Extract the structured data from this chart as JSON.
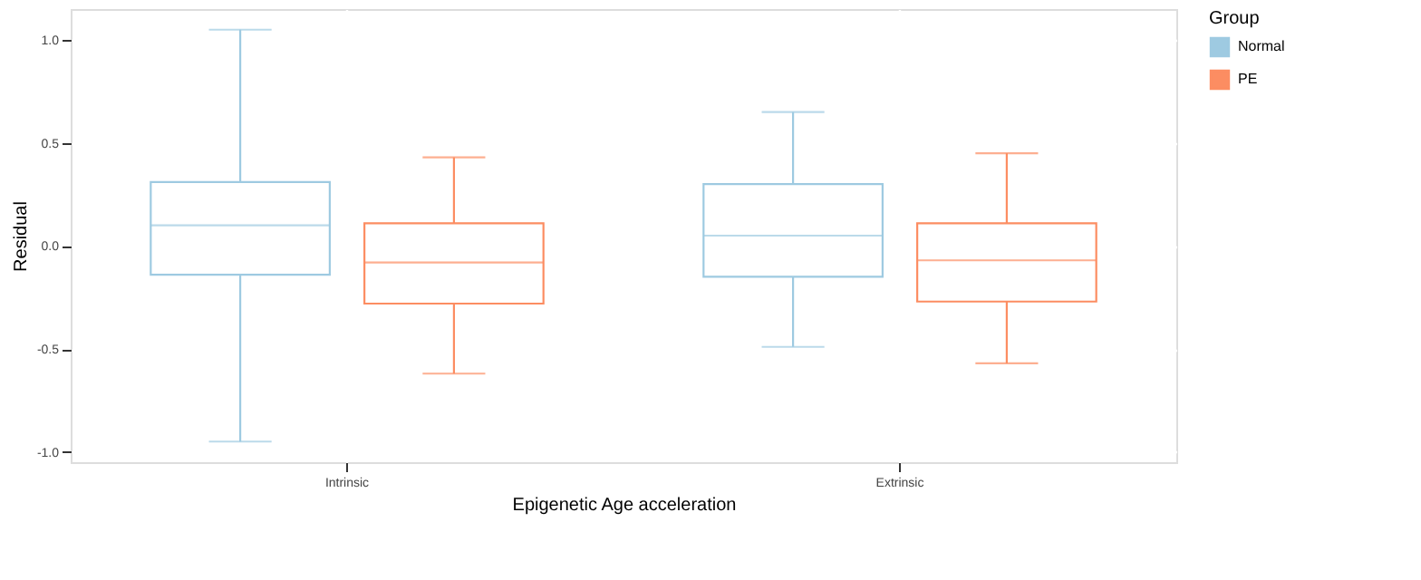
{
  "chart_data": {
    "type": "box",
    "xlabel": "Epigenetic Age acceleration",
    "ylabel": "Residual",
    "legend_title": "Group",
    "categories": [
      "Intrinsic",
      "Extrinsic"
    ],
    "series": [
      {
        "name": "Normal",
        "color": "#9ecae1",
        "boxes": [
          {
            "low": -0.95,
            "q1": -0.14,
            "median": 0.1,
            "q3": 0.31,
            "high": 1.05
          },
          {
            "low": -0.49,
            "q1": -0.15,
            "median": 0.05,
            "q3": 0.3,
            "high": 0.65
          }
        ]
      },
      {
        "name": "PE",
        "color": "#fc8d62",
        "boxes": [
          {
            "low": -0.62,
            "q1": -0.28,
            "median": -0.08,
            "q3": 0.11,
            "high": 0.43
          },
          {
            "low": -0.57,
            "q1": -0.27,
            "median": -0.07,
            "q3": 0.11,
            "high": 0.45
          }
        ]
      }
    ],
    "ylim": [
      -1.05,
      1.15
    ],
    "yticks": [
      {
        "value": -1,
        "label": "-1.0"
      },
      {
        "value": -0.5,
        "label": "-0.5"
      },
      {
        "value": 0,
        "label": "0.0"
      },
      {
        "value": 0.5,
        "label": "0.5"
      },
      {
        "value": 1,
        "label": "1.0"
      }
    ],
    "grid": true,
    "legend": "right"
  }
}
